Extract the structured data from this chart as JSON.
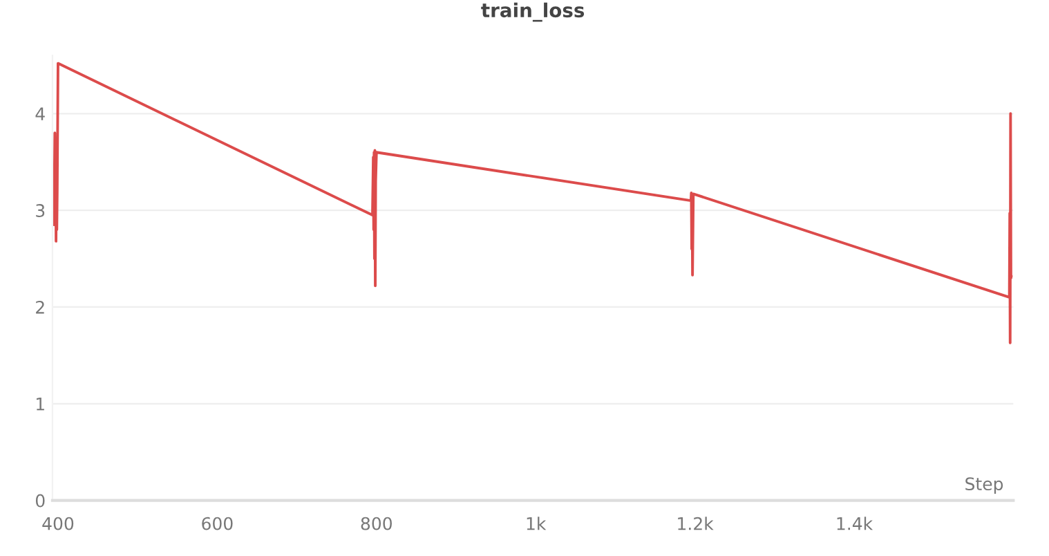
{
  "chart_data": {
    "type": "line",
    "title": "train_loss",
    "xlabel": "Step",
    "x": [
      394,
      395,
      396,
      396.5,
      397,
      397.5,
      398,
      398.5,
      399,
      400,
      795,
      796,
      796.5,
      797,
      797.5,
      798,
      798.5,
      799,
      800,
      1195,
      1195.5,
      1196,
      1196.5,
      1197,
      1198,
      1595,
      1595.5,
      1596,
      1596.5,
      1597,
      1597.5
    ],
    "series": [
      {
        "color": "#dc4b4b",
        "values": [
          3.3,
          2.85,
          3.8,
          2.9,
          3.75,
          2.68,
          3.5,
          2.8,
          3.2,
          4.52,
          2.95,
          3.55,
          2.8,
          3.6,
          2.5,
          3.62,
          2.22,
          3.3,
          3.6,
          3.1,
          3.18,
          2.6,
          3.1,
          2.33,
          3.17,
          2.1,
          2.97,
          1.63,
          4.0,
          2.3,
          2.32
        ]
      }
    ],
    "xlim": [
      393,
      1600
    ],
    "ylim": [
      0,
      4.6
    ],
    "xticks": [
      400,
      600,
      800,
      {
        "value": 1000,
        "label": "1k"
      },
      {
        "value": 1200,
        "label": "1.2k"
      },
      {
        "value": 1400,
        "label": "1.4k"
      }
    ],
    "yticks": [
      0,
      1,
      2,
      3,
      4
    ],
    "grid": "y",
    "legend": false
  }
}
